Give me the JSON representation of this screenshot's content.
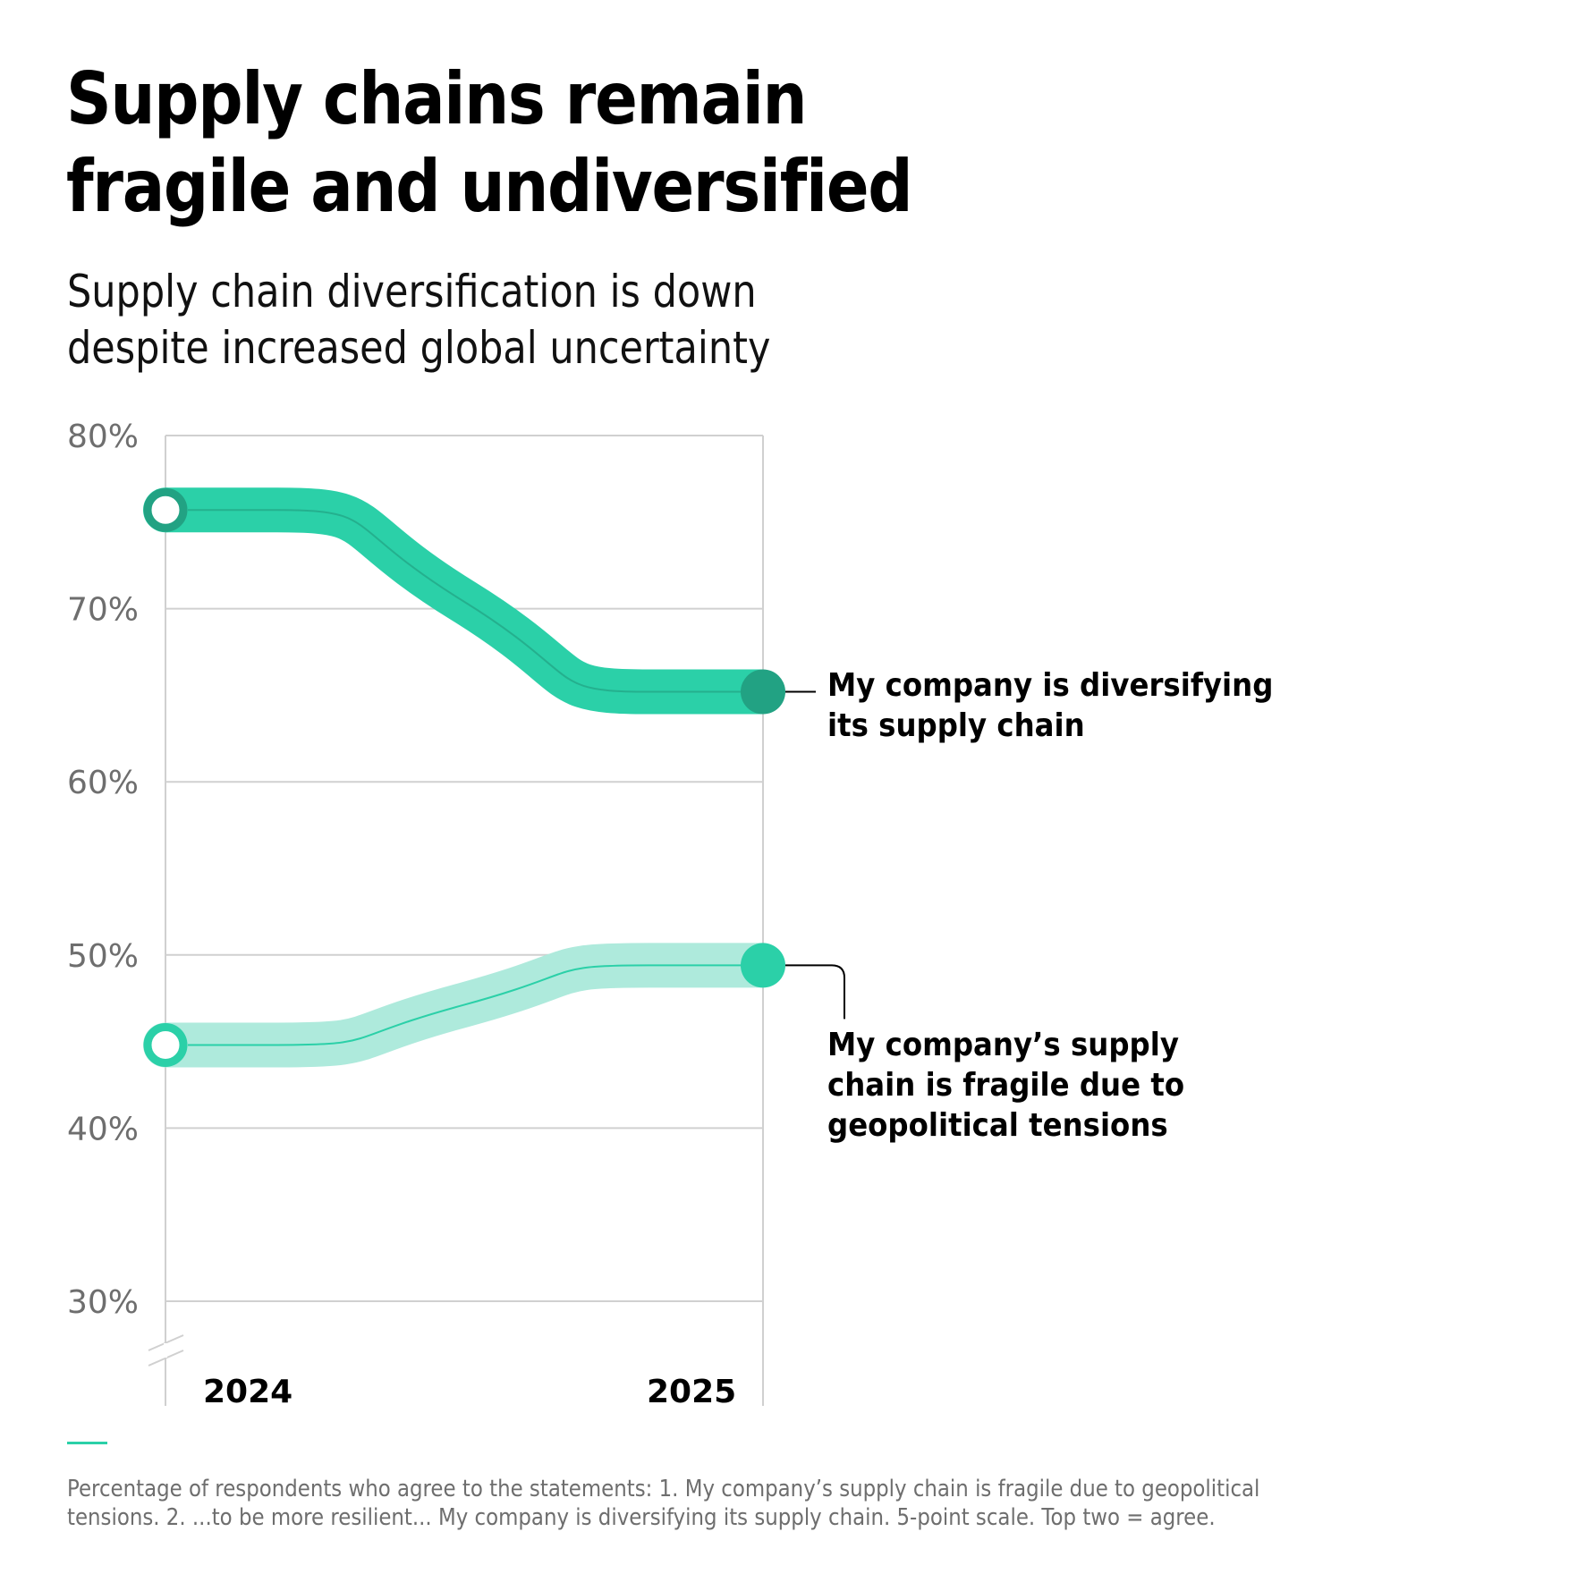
{
  "header": {
    "title_line1": "Supply chains remain",
    "title_line2": "fragile and undiversified",
    "subtitle_line1": "Supply chain diversification is down",
    "subtitle_line2": "despite increased global uncertainty"
  },
  "colors": {
    "diversifying_band": "#2bd0a8",
    "diversifying_marker": "#22a283",
    "fragile_band": "#aeeadc",
    "fragile_marker": "#2bd0a8",
    "grid": "#d0d0d0",
    "accent": "#2bd0a8"
  },
  "chart_data": {
    "type": "line",
    "title": "Supply chains remain fragile and undiversified",
    "subtitle": "Supply chain diversification is down despite increased global uncertainty",
    "x": [
      "2024",
      "2025"
    ],
    "xlabel": "",
    "ylabel": "",
    "ylim": [
      30,
      80
    ],
    "y_axis_break": true,
    "yticks": [
      80,
      70,
      60,
      50,
      40,
      30
    ],
    "ytick_labels": [
      "80%",
      "70%",
      "60%",
      "50%",
      "40%",
      "30%"
    ],
    "grid": true,
    "series": [
      {
        "id": "diversifying",
        "name": "My company is diversifying its supply chain",
        "label_line1": "My company is diversifying",
        "label_line2": "its supply chain",
        "values": [
          75.7,
          65.2
        ]
      },
      {
        "id": "fragile",
        "name": "My company's supply chain is fragile due to geopolitical tensions",
        "label_line1": "My company’s supply",
        "label_line2": "chain is fragile due to",
        "label_line3": "geopolitical tensions",
        "values": [
          44.8,
          49.4
        ]
      }
    ]
  },
  "footnote": {
    "line1": "Percentage of respondents who agree to the statements: 1. My company’s supply chain is fragile due to geopolitical",
    "line2": "tensions. 2. ...to be more resilient... My company is diversifying its supply chain. 5-point scale. Top two = agree."
  }
}
